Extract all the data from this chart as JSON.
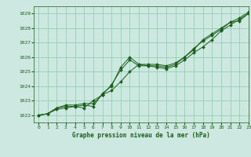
{
  "title": "Graphe pression niveau de la mer (hPa)",
  "background_color": "#cce8e0",
  "grid_color": "#88ccaa",
  "line_color": "#1a5e1a",
  "marker_color": "#1a5e1a",
  "xlim": [
    -0.5,
    23
  ],
  "ylim": [
    1021.5,
    1029.5
  ],
  "xticks": [
    0,
    1,
    2,
    3,
    4,
    5,
    6,
    7,
    8,
    9,
    10,
    11,
    12,
    13,
    14,
    15,
    16,
    17,
    18,
    19,
    20,
    21,
    22,
    23
  ],
  "yticks": [
    1022,
    1023,
    1024,
    1025,
    1026,
    1027,
    1028,
    1029
  ],
  "series1_x": [
    0,
    1,
    2,
    3,
    4,
    5,
    6,
    7,
    8,
    9,
    10,
    11,
    12,
    13,
    14,
    15,
    16,
    17,
    18,
    19,
    20,
    21,
    22,
    23
  ],
  "series1_y": [
    1022.0,
    1022.1,
    1022.5,
    1022.6,
    1022.6,
    1022.7,
    1022.6,
    1023.5,
    1024.0,
    1025.3,
    1026.0,
    1025.5,
    1025.4,
    1025.4,
    1025.3,
    1025.5,
    1026.0,
    1026.6,
    1027.1,
    1027.5,
    1027.9,
    1028.4,
    1028.5,
    1029.0
  ],
  "series2_x": [
    0,
    1,
    2,
    3,
    4,
    5,
    6,
    7,
    8,
    9,
    10,
    11,
    12,
    13,
    14,
    15,
    16,
    17,
    18,
    19,
    20,
    21,
    22,
    23
  ],
  "series2_y": [
    1022.0,
    1022.1,
    1022.5,
    1022.7,
    1022.7,
    1022.8,
    1022.8,
    1023.4,
    1024.1,
    1025.1,
    1025.8,
    1025.4,
    1025.4,
    1025.3,
    1025.2,
    1025.4,
    1025.8,
    1026.3,
    1026.7,
    1027.2,
    1027.8,
    1028.2,
    1028.6,
    1029.0
  ],
  "series3_x": [
    0,
    1,
    2,
    3,
    4,
    5,
    6,
    7,
    8,
    9,
    10,
    11,
    12,
    13,
    14,
    15,
    16,
    17,
    18,
    19,
    20,
    21,
    22,
    23
  ],
  "series3_y": [
    1022.0,
    1022.1,
    1022.4,
    1022.5,
    1022.6,
    1022.5,
    1023.0,
    1023.4,
    1023.7,
    1024.3,
    1025.0,
    1025.5,
    1025.5,
    1025.5,
    1025.4,
    1025.6,
    1026.0,
    1026.5,
    1027.2,
    1027.6,
    1028.0,
    1028.4,
    1028.7,
    1029.1
  ]
}
